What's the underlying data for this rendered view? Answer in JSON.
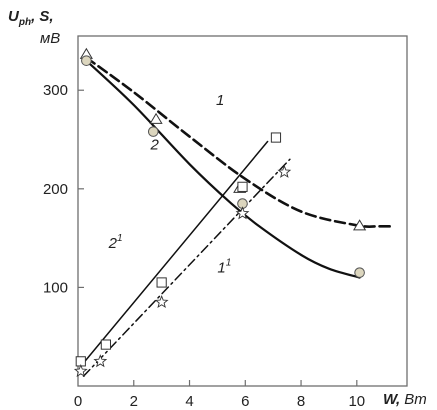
{
  "chart_data": {
    "type": "line",
    "title": "",
    "xlabel": {
      "main": "W,",
      "unit": "Вт"
    },
    "ylabel": {
      "line1_main": "U",
      "line1_sub": "ph",
      "line1_rest": ", S,",
      "line2": "мВ"
    },
    "xlim": [
      0,
      11.8
    ],
    "ylim": [
      0,
      355
    ],
    "xticks": [
      0,
      2,
      4,
      6,
      8,
      10
    ],
    "yticks": [
      100,
      200,
      300
    ],
    "x_tick_labels": [
      "0",
      "2",
      "4",
      "6",
      "8",
      "10"
    ],
    "y_tick_labels": [
      "100",
      "200",
      "300"
    ],
    "grid": false,
    "series": [
      {
        "name": "1",
        "label_base": "1",
        "label_sup": "",
        "style": "dashed",
        "marker": "triangle",
        "curve": [
          [
            0.3,
            333
          ],
          [
            2,
            298
          ],
          [
            4,
            253
          ],
          [
            6,
            210
          ],
          [
            8,
            177
          ],
          [
            10,
            163
          ],
          [
            10.8,
            162
          ],
          [
            11.3,
            162
          ]
        ],
        "points": [
          [
            0.3,
            336
          ],
          [
            2.8,
            270
          ],
          [
            5.8,
            200
          ],
          [
            10.1,
            162
          ]
        ]
      },
      {
        "name": "2",
        "label_base": "2",
        "label_sup": "",
        "style": "solid",
        "marker": "circle",
        "curve": [
          [
            0.3,
            330
          ],
          [
            2,
            285
          ],
          [
            4,
            225
          ],
          [
            5.5,
            185
          ],
          [
            6.5,
            162
          ],
          [
            8,
            133
          ],
          [
            9,
            119
          ],
          [
            10.1,
            110
          ]
        ],
        "points": [
          [
            0.3,
            330
          ],
          [
            2.7,
            258
          ],
          [
            5.9,
            185
          ],
          [
            10.1,
            115
          ]
        ]
      },
      {
        "name": "2¹",
        "label_base": "2",
        "label_sup": "1",
        "style": "solid",
        "marker": "square",
        "curve": [
          [
            0.1,
            20
          ],
          [
            6.8,
            248
          ]
        ],
        "points": [
          [
            0.1,
            25
          ],
          [
            1.0,
            42
          ],
          [
            3.0,
            105
          ],
          [
            5.9,
            202
          ],
          [
            7.1,
            252
          ]
        ]
      },
      {
        "name": "1¹",
        "label_base": "1",
        "label_sup": "1",
        "style": "dashdot",
        "marker": "star",
        "curve": [
          [
            0.2,
            10
          ],
          [
            7.6,
            230
          ]
        ],
        "points": [
          [
            0.1,
            15
          ],
          [
            0.8,
            25
          ],
          [
            3.0,
            85
          ],
          [
            5.9,
            175
          ],
          [
            7.4,
            217
          ]
        ]
      }
    ],
    "annotations": [
      {
        "text": "1",
        "sup": "",
        "x": 4.95,
        "y": 285
      },
      {
        "text": "2",
        "sup": "",
        "x": 2.6,
        "y": 240
      },
      {
        "text": "2",
        "sup": "1",
        "x": 1.1,
        "y": 140
      },
      {
        "text": "1",
        "sup": "1",
        "x": 5.0,
        "y": 115
      }
    ]
  },
  "colors": {
    "axis": "#6e6e6e",
    "line": "#111111",
    "text": "#222222",
    "circle_fill": "#dcd6be",
    "circle_stroke": "#555555",
    "open_marker_stroke": "#333333"
  }
}
